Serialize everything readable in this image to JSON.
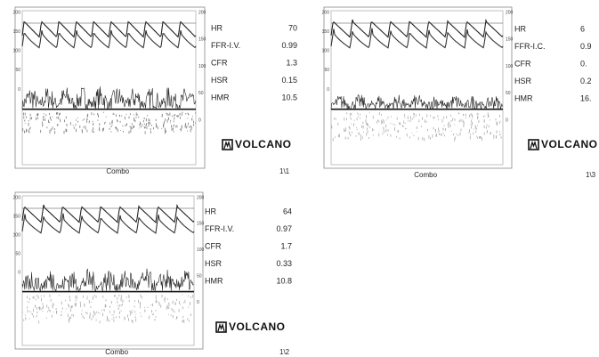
{
  "panels": [
    {
      "left_ticks": [
        "200",
        "150",
        "100",
        "50",
        "0"
      ],
      "right_ticks": [
        "200",
        "150",
        "100",
        "50",
        "0"
      ],
      "parameters": [
        {
          "label": "HR",
          "value": "70"
        },
        {
          "label": "FFR-I.V.",
          "value": "0.99"
        },
        {
          "label": "CFR",
          "value": "1.3"
        },
        {
          "label": "HSR",
          "value": "0.15"
        },
        {
          "label": "HMR",
          "value": "10.5"
        }
      ],
      "brand": "VOLCANO",
      "caption": "Combo",
      "page": "1\\1"
    },
    {
      "left_ticks": [
        "200",
        "150",
        "100",
        "50",
        "0"
      ],
      "right_ticks": [
        "200",
        "150",
        "100",
        "50",
        "0"
      ],
      "parameters": [
        {
          "label": "HR",
          "value": "6"
        },
        {
          "label": "FFR-I.C.",
          "value": "0.9"
        },
        {
          "label": "CFR",
          "value": "0."
        },
        {
          "label": "HSR",
          "value": "0.2"
        },
        {
          "label": "HMR",
          "value": "16."
        }
      ],
      "brand": "VOLCANO",
      "caption": "Combo",
      "page": "1\\3"
    },
    {
      "left_ticks": [
        "200",
        "150",
        "100",
        "50",
        "0"
      ],
      "right_ticks": [
        "200",
        "150",
        "100",
        "50",
        "0"
      ],
      "parameters": [
        {
          "label": "HR",
          "value": "64"
        },
        {
          "label": "FFR-I.V.",
          "value": "0.97"
        },
        {
          "label": "CFR",
          "value": "1.7"
        },
        {
          "label": "HSR",
          "value": "0.33"
        },
        {
          "label": "HMR",
          "value": "10.8"
        }
      ],
      "brand": "VOLCANO",
      "caption": "Combo",
      "page": "1\\2"
    }
  ]
}
